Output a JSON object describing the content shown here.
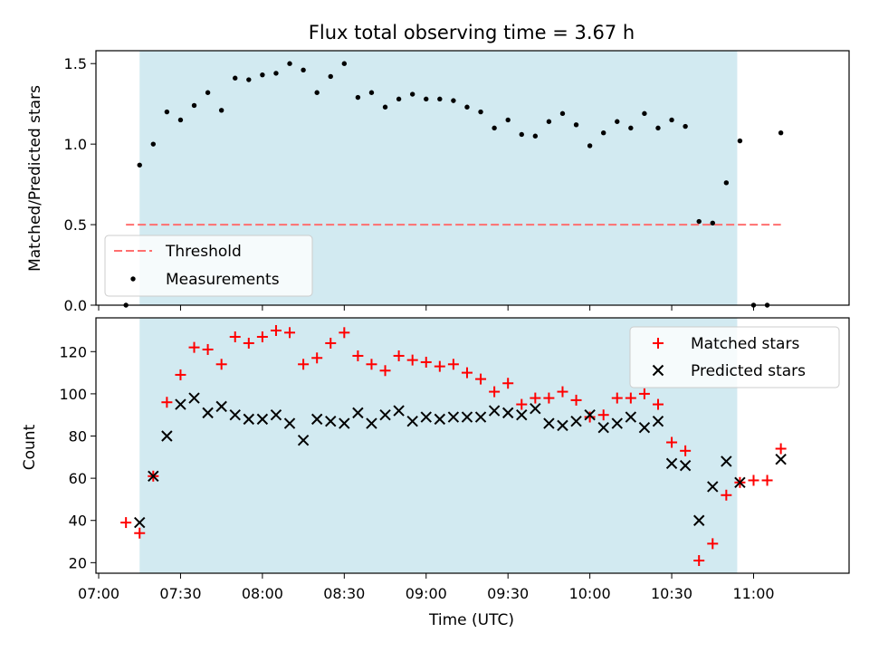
{
  "title": "Flux total observing time = 3.67 h",
  "colors": {
    "observing_span": "#add8e6",
    "threshold": "#ff6f6f",
    "measurements": "#000000",
    "matched": "#ff0000",
    "predicted": "#000000"
  },
  "chart_data": [
    {
      "type": "scatter",
      "ylabel": "Matched/Predicted stars",
      "ylim": [
        0,
        1.58
      ],
      "yticks": [
        0.0,
        0.5,
        1.0,
        1.5
      ],
      "ytick_labels": [
        "0.0",
        "0.5",
        "1.0",
        "1.5"
      ],
      "xlim": [
        "06:59",
        "11:35"
      ],
      "observing_span": [
        "07:15",
        "10:54"
      ],
      "threshold": {
        "name": "Threshold",
        "value": 0.5,
        "x_range": [
          "07:10",
          "11:10"
        ]
      },
      "legend": {
        "placement": "lower-left",
        "entries": [
          "Threshold",
          "Measurements"
        ]
      },
      "series": [
        {
          "name": "Measurements",
          "x": [
            "07:10",
            "07:15",
            "07:20",
            "07:25",
            "07:30",
            "07:35",
            "07:40",
            "07:45",
            "07:50",
            "07:55",
            "08:00",
            "08:05",
            "08:10",
            "08:15",
            "08:20",
            "08:25",
            "08:30",
            "08:35",
            "08:40",
            "08:45",
            "08:50",
            "08:55",
            "09:00",
            "09:05",
            "09:10",
            "09:15",
            "09:20",
            "09:25",
            "09:30",
            "09:35",
            "09:40",
            "09:45",
            "09:50",
            "09:55",
            "10:00",
            "10:05",
            "10:10",
            "10:15",
            "10:20",
            "10:25",
            "10:30",
            "10:35",
            "10:40",
            "10:45",
            "10:50",
            "10:55",
            "11:00",
            "11:05",
            "11:10"
          ],
          "y": [
            0.0,
            0.87,
            1.0,
            1.2,
            1.15,
            1.24,
            1.32,
            1.21,
            1.41,
            1.4,
            1.43,
            1.44,
            1.5,
            1.46,
            1.32,
            1.42,
            1.5,
            1.29,
            1.32,
            1.23,
            1.28,
            1.31,
            1.28,
            1.28,
            1.27,
            1.23,
            1.2,
            1.1,
            1.15,
            1.06,
            1.05,
            1.14,
            1.19,
            1.12,
            0.99,
            1.07,
            1.14,
            1.1,
            1.19,
            1.1,
            1.15,
            1.11,
            0.52,
            0.51,
            0.76,
            1.02,
            0.0,
            0.0,
            1.07
          ]
        }
      ]
    },
    {
      "type": "scatter",
      "xlabel": "Time (UTC)",
      "ylabel": "Count",
      "ylim": [
        15,
        136
      ],
      "yticks": [
        20,
        40,
        60,
        80,
        100,
        120
      ],
      "xlim": [
        "06:59",
        "11:35"
      ],
      "xticks": [
        "07:00",
        "07:30",
        "08:00",
        "08:30",
        "09:00",
        "09:30",
        "10:00",
        "10:30",
        "11:00"
      ],
      "observing_span": [
        "07:15",
        "10:54"
      ],
      "legend": {
        "placement": "upper-right",
        "entries": [
          "Matched stars",
          "Predicted stars"
        ]
      },
      "series": [
        {
          "name": "Matched stars",
          "x": [
            "07:10",
            "07:15",
            "07:20",
            "07:25",
            "07:30",
            "07:35",
            "07:40",
            "07:45",
            "07:50",
            "07:55",
            "08:00",
            "08:05",
            "08:10",
            "08:15",
            "08:20",
            "08:25",
            "08:30",
            "08:35",
            "08:40",
            "08:45",
            "08:50",
            "08:55",
            "09:00",
            "09:05",
            "09:10",
            "09:15",
            "09:20",
            "09:25",
            "09:30",
            "09:35",
            "09:40",
            "09:45",
            "09:50",
            "09:55",
            "10:00",
            "10:05",
            "10:10",
            "10:15",
            "10:20",
            "10:25",
            "10:30",
            "10:35",
            "10:40",
            "10:45",
            "10:50",
            "10:55",
            "11:00",
            "11:05",
            "11:10"
          ],
          "y": [
            39,
            34,
            61,
            96,
            109,
            122,
            121,
            114,
            127,
            124,
            127,
            130,
            129,
            114,
            117,
            124,
            129,
            118,
            114,
            111,
            118,
            116,
            115,
            113,
            114,
            110,
            107,
            101,
            105,
            95,
            98,
            98,
            101,
            97,
            89,
            90,
            98,
            98,
            100,
            95,
            77,
            73,
            21,
            29,
            52,
            58,
            59,
            59,
            74
          ]
        },
        {
          "name": "Predicted stars",
          "x": [
            "07:15",
            "07:20",
            "07:25",
            "07:30",
            "07:35",
            "07:40",
            "07:45",
            "07:50",
            "07:55",
            "08:00",
            "08:05",
            "08:10",
            "08:15",
            "08:20",
            "08:25",
            "08:30",
            "08:35",
            "08:40",
            "08:45",
            "08:50",
            "08:55",
            "09:00",
            "09:05",
            "09:10",
            "09:15",
            "09:20",
            "09:25",
            "09:30",
            "09:35",
            "09:40",
            "09:45",
            "09:50",
            "09:55",
            "10:00",
            "10:05",
            "10:10",
            "10:15",
            "10:20",
            "10:25",
            "10:30",
            "10:35",
            "10:40",
            "10:45",
            "10:50",
            "10:55",
            "11:10"
          ],
          "y": [
            39,
            61,
            80,
            95,
            98,
            91,
            94,
            90,
            88,
            88,
            90,
            86,
            78,
            88,
            87,
            86,
            91,
            86,
            90,
            92,
            87,
            89,
            88,
            89,
            89,
            89,
            92,
            91,
            90,
            93,
            86,
            85,
            87,
            90,
            84,
            86,
            89,
            84,
            87,
            67,
            66,
            40,
            56,
            68,
            58,
            69
          ]
        }
      ]
    }
  ]
}
